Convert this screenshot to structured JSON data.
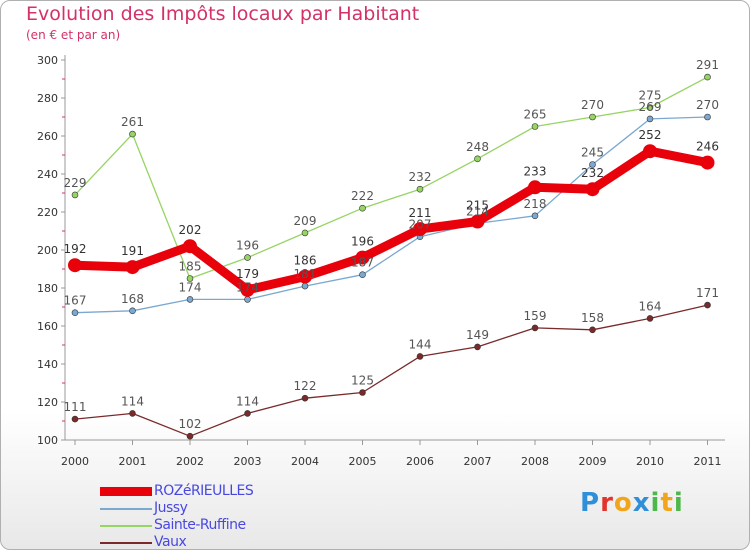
{
  "header": {
    "title": "Evolution des Impôts locaux par Habitant",
    "subtitle": "(en € et par an)"
  },
  "brand": {
    "logo_letters": [
      "P",
      "r",
      "o",
      "x",
      "i",
      "t",
      "i"
    ],
    "logo_colors": [
      "#2f8fd8",
      "#e0342d",
      "#f2a51a",
      "#2f8fd8",
      "#4db84a",
      "#f2a51a",
      "#4db84a"
    ]
  },
  "chart_data": {
    "type": "line",
    "title": "Evolution des Impôts locaux par Habitant",
    "subtitle": "(en € et par an)",
    "xlabel": "",
    "ylabel": "",
    "ylim": [
      100,
      300
    ],
    "yticks": [
      100,
      120,
      140,
      160,
      180,
      200,
      220,
      240,
      260,
      280,
      300
    ],
    "grid": false,
    "legend_position": "bottom-left",
    "categories": [
      "2000",
      "2001",
      "2002",
      "2003",
      "2004",
      "2005",
      "2006",
      "2007",
      "2008",
      "2009",
      "2010",
      "2011"
    ],
    "series": [
      {
        "name": "ROZéRIEULLES",
        "color": "#e8000b",
        "width": 9,
        "marker_radius": 7,
        "label_color": "#333333",
        "values": [
          192,
          191,
          202,
          179,
          186,
          196,
          211,
          215,
          233,
          232,
          252,
          246
        ]
      },
      {
        "name": "Jussy",
        "color": "#7aa8d0",
        "width": 1.3,
        "marker_radius": 3,
        "label_color": "#555555",
        "values": [
          167,
          168,
          174,
          174,
          181,
          187,
          207,
          214,
          218,
          245,
          269,
          270
        ]
      },
      {
        "name": "Sainte-Ruffine",
        "color": "#96d463",
        "width": 1.3,
        "marker_radius": 3,
        "label_color": "#555555",
        "values": [
          229,
          261,
          185,
          196,
          209,
          222,
          232,
          248,
          265,
          270,
          275,
          291
        ]
      },
      {
        "name": "Vaux",
        "color": "#7a2a2a",
        "width": 1.3,
        "marker_radius": 3,
        "label_color": "#555555",
        "values": [
          111,
          114,
          102,
          114,
          122,
          125,
          144,
          149,
          159,
          158,
          164,
          171
        ]
      }
    ]
  }
}
